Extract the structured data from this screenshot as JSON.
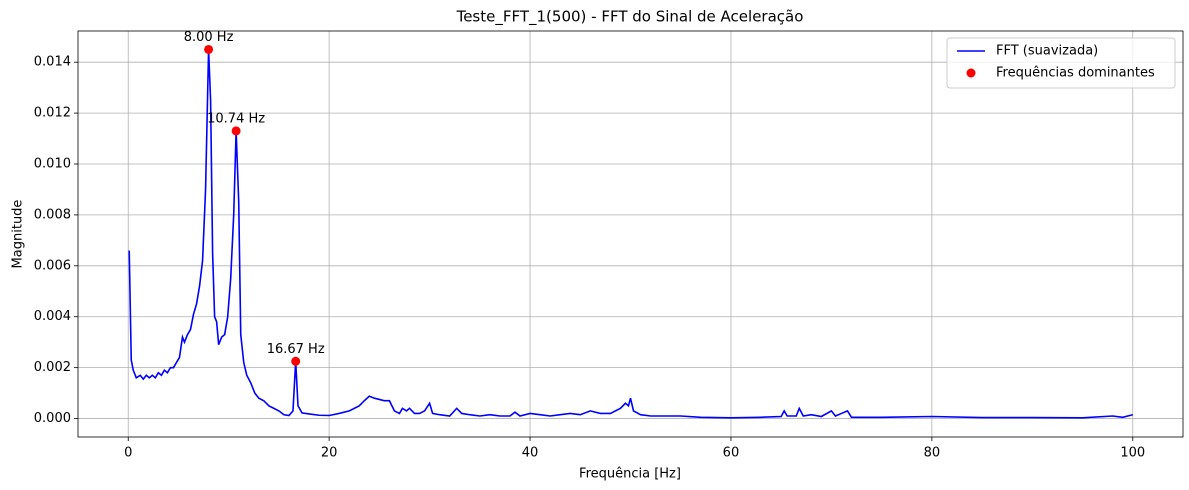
{
  "chart_data": {
    "type": "line",
    "title": "Teste_FFT_1(500) - FFT do Sinal de Aceleração",
    "xlabel": "Frequência [Hz]",
    "ylabel": "Magnitude",
    "xlim": [
      -5,
      105
    ],
    "ylim": [
      -0.000725,
      0.015225
    ],
    "xticks": [
      0,
      20,
      40,
      60,
      80,
      100
    ],
    "yticks": [
      {
        "value": 0,
        "label": "0.000"
      },
      {
        "value": 0.002,
        "label": "0.002"
      },
      {
        "value": 0.004,
        "label": "0.004"
      },
      {
        "value": 0.006,
        "label": "0.006"
      },
      {
        "value": 0.008,
        "label": "0.008"
      },
      {
        "value": 0.01,
        "label": "0.010"
      },
      {
        "value": 0.012,
        "label": "0.012"
      },
      {
        "value": 0.014,
        "label": "0.014"
      }
    ],
    "grid": true,
    "legend": "upper right",
    "series": [
      {
        "name": "FFT (suavizada)",
        "color": "#0000ff",
        "type": "line",
        "x": [
          0.1,
          0.3,
          0.5,
          0.8,
          1.2,
          1.5,
          1.8,
          2.1,
          2.4,
          2.7,
          3.0,
          3.3,
          3.6,
          3.9,
          4.2,
          4.5,
          4.8,
          5.1,
          5.4,
          5.6,
          5.9,
          6.2,
          6.5,
          6.8,
          7.1,
          7.4,
          7.7,
          8.0,
          8.2,
          8.4,
          8.6,
          8.8,
          9.0,
          9.3,
          9.6,
          9.9,
          10.2,
          10.5,
          10.74,
          11.0,
          11.2,
          11.5,
          11.8,
          12.2,
          12.6,
          13.0,
          13.5,
          14.0,
          14.5,
          15.0,
          15.5,
          16.0,
          16.4,
          16.67,
          16.9,
          17.3,
          18,
          19,
          20,
          21,
          22,
          22.5,
          23,
          23.5,
          24,
          24.5,
          25,
          25.5,
          26,
          26.5,
          27,
          27.3,
          27.7,
          28,
          28.5,
          29,
          29.5,
          30,
          30.3,
          31,
          32,
          32.7,
          33.2,
          34,
          35,
          36,
          37,
          38,
          38.5,
          39,
          40,
          41,
          42,
          43,
          44,
          45,
          46,
          47,
          48,
          49,
          49.5,
          49.8,
          50,
          50.3,
          51,
          52,
          53,
          55,
          57,
          60,
          63,
          65,
          65.3,
          65.6,
          66.5,
          66.8,
          67.2,
          68,
          69,
          70,
          70.4,
          71,
          71.6,
          72,
          75,
          80,
          85,
          90,
          95,
          98,
          99,
          99.5,
          100
        ],
        "values": [
          0.0066,
          0.0023,
          0.0019,
          0.0016,
          0.0017,
          0.00155,
          0.0017,
          0.0016,
          0.0017,
          0.0016,
          0.0018,
          0.0017,
          0.0019,
          0.0018,
          0.002,
          0.002,
          0.0022,
          0.0024,
          0.0032,
          0.003,
          0.0033,
          0.0035,
          0.0041,
          0.0045,
          0.0052,
          0.0062,
          0.009,
          0.0145,
          0.0125,
          0.0065,
          0.004,
          0.0038,
          0.0029,
          0.0032,
          0.0033,
          0.004,
          0.0055,
          0.008,
          0.0113,
          0.0085,
          0.0033,
          0.0022,
          0.0017,
          0.0014,
          0.001,
          0.0008,
          0.0007,
          0.0005,
          0.0004,
          0.0003,
          0.00015,
          0.00012,
          0.0003,
          0.00225,
          0.0005,
          0.00022,
          0.00018,
          0.00013,
          0.00012,
          0.0002,
          0.0003,
          0.0004,
          0.0005,
          0.0007,
          0.00088,
          0.0008,
          0.00075,
          0.0007,
          0.0007,
          0.0003,
          0.0002,
          0.0004,
          0.0003,
          0.0004,
          0.0002,
          0.0002,
          0.0003,
          0.0006,
          0.0002,
          0.00015,
          0.0001,
          0.0004,
          0.0002,
          0.00015,
          0.0001,
          0.00015,
          0.0001,
          0.0001,
          0.00025,
          0.0001,
          0.0002,
          0.00015,
          0.0001,
          0.00015,
          0.0002,
          0.00015,
          0.0003,
          0.0002,
          0.0002,
          0.0004,
          0.0006,
          0.0005,
          0.0008,
          0.0003,
          0.00015,
          0.0001,
          0.0001,
          0.0001,
          5e-05,
          3e-05,
          5e-05,
          8e-05,
          0.0003,
          0.0001,
          0.0001,
          0.0004,
          0.0001,
          0.00015,
          8e-05,
          0.0003,
          0.0001,
          0.0002,
          0.0003,
          5e-05,
          5e-05,
          8e-05,
          4e-05,
          4e-05,
          3e-05,
          0.0001,
          5e-05,
          0.0001,
          0.00015
        ]
      },
      {
        "name": "Frequências dominantes",
        "color": "#ff0000",
        "type": "scatter",
        "x": [
          8.0,
          10.74,
          16.67
        ],
        "values": [
          0.0145,
          0.0113,
          0.00225
        ],
        "value_labels": [
          "8.00 Hz",
          "10.74 Hz",
          "16.67 Hz"
        ]
      }
    ]
  }
}
